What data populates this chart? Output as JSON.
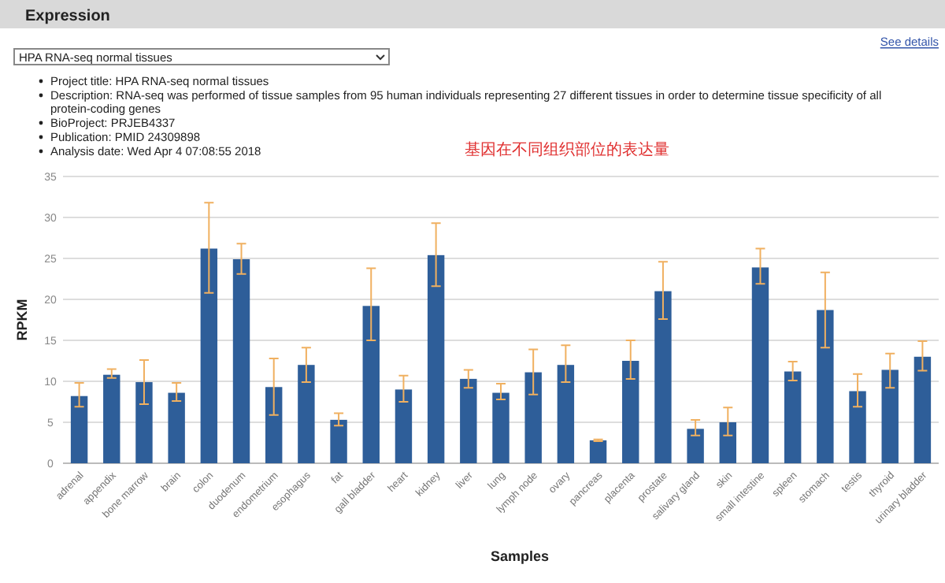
{
  "chart_data": {
    "type": "bar",
    "title": "Expression",
    "subtitle": "HPA RNA-seq normal tissues",
    "xlabel": "Samples",
    "ylabel": "RPKM",
    "annotations": [
      "See details",
      "Project title: HPA RNA-seq normal tissues",
      "Description: RNA-seq was performed of tissue samples from 95 human individuals representing 27 different tissues in order to determine tissue specificity of all protein-coding genes",
      "BioProject: PRJEB4337",
      "Publication: PMID 24309898",
      "Analysis date: Wed Apr 4 07:08:55 2018",
      "基因在不同组织部位的表达量"
    ],
    "categories": [
      "adrenal",
      "appendix",
      "bone marrow",
      "brain",
      "colon",
      "duodenum",
      "endometrium",
      "esophagus",
      "fat",
      "gall bladder",
      "heart",
      "kidney",
      "liver",
      "lung",
      "lymph node",
      "ovary",
      "pancreas",
      "placenta",
      "prostate",
      "salivary gland",
      "skin",
      "small intestine",
      "spleen",
      "stomach",
      "testis",
      "thyroid",
      "urinary bladder"
    ],
    "series": [
      {
        "color": "#2e5e99",
        "values": [
          8.2,
          10.8,
          9.9,
          8.6,
          26.2,
          24.9,
          9.3,
          12.0,
          5.3,
          19.2,
          9.0,
          25.4,
          10.3,
          8.6,
          11.1,
          12.0,
          2.8,
          12.5,
          21.0,
          4.2,
          5.0,
          23.9,
          11.2,
          18.7,
          8.8,
          11.4,
          13.0
        ],
        "errors": [
          [
            6.9,
            9.8
          ],
          [
            10.4,
            11.5
          ],
          [
            7.2,
            12.6
          ],
          [
            7.6,
            9.8
          ],
          [
            20.8,
            31.8
          ],
          [
            23.1,
            26.8
          ],
          [
            5.9,
            12.8
          ],
          [
            9.9,
            14.1
          ],
          [
            4.6,
            6.1
          ],
          [
            15.0,
            23.8
          ],
          [
            7.5,
            10.7
          ],
          [
            21.6,
            29.3
          ],
          [
            9.2,
            11.4
          ],
          [
            7.8,
            9.7
          ],
          [
            8.4,
            13.9
          ],
          [
            9.9,
            14.4
          ],
          [
            2.7,
            2.9
          ],
          [
            10.3,
            15.0
          ],
          [
            17.6,
            24.6
          ],
          [
            3.4,
            5.3
          ],
          [
            3.4,
            6.8
          ],
          [
            21.9,
            26.2
          ],
          [
            10.1,
            12.4
          ],
          [
            14.1,
            23.3
          ],
          [
            6.9,
            10.9
          ],
          [
            9.2,
            13.4
          ],
          [
            11.3,
            14.9
          ]
        ]
      }
    ],
    "ylim": [
      0,
      35
    ],
    "yticks": [
      0,
      5,
      10,
      15,
      20,
      25,
      30,
      35
    ],
    "grid": "y"
  }
}
